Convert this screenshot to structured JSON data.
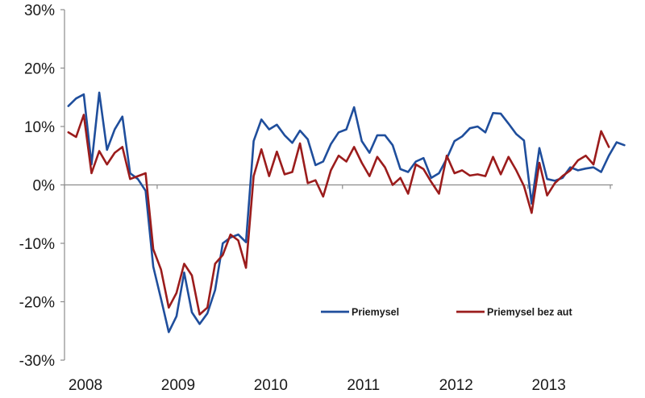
{
  "chart_data": {
    "type": "line",
    "title": "",
    "xlabel": "",
    "ylabel": "",
    "ylim": [
      -30,
      30
    ],
    "yticks": [
      30,
      20,
      10,
      0,
      -10,
      -20,
      -30
    ],
    "ytick_labels": [
      "30%",
      "20%",
      "10%",
      "0%",
      "-10%",
      "-20%",
      "-30%"
    ],
    "xlim": [
      2008.0,
      2013.9167
    ],
    "xticks": [
      2008,
      2009,
      2010,
      2011,
      2012,
      2013
    ],
    "xtick_labels": [
      "2008",
      "2009",
      "2010",
      "2011",
      "2012",
      "2013"
    ],
    "grid": false,
    "legend_position": "bottom-right",
    "frequency": "monthly",
    "start": "2008-01",
    "series": [
      {
        "name": "Priemysel",
        "color": "#1f4e9c",
        "values": [
          13.5,
          14.8,
          15.5,
          3.5,
          15.8,
          6.0,
          9.5,
          11.7,
          2.0,
          1.0,
          -1.0,
          -14.0,
          -19.5,
          -25.2,
          -22.5,
          -15.0,
          -21.8,
          -23.8,
          -22.0,
          -18.0,
          -10.0,
          -9.0,
          -8.5,
          -9.8,
          7.5,
          11.2,
          9.5,
          10.3,
          8.5,
          7.2,
          9.3,
          7.8,
          3.4,
          4.0,
          7.0,
          9.0,
          9.5,
          13.3,
          7.5,
          5.5,
          8.5,
          8.5,
          6.8,
          2.7,
          2.2,
          4.0,
          4.6,
          1.2,
          2.0,
          4.5,
          7.5,
          8.3,
          9.7,
          10.0,
          9.0,
          12.3,
          12.2,
          10.5,
          8.7,
          7.6,
          -3.2,
          6.3,
          1.0,
          0.7,
          1.2,
          3.0,
          2.5,
          2.8,
          3.0,
          2.2,
          5.0,
          7.3,
          6.8
        ]
      },
      {
        "name": "Priemysel bez aut",
        "color": "#9b1c1c",
        "values": [
          9.0,
          8.2,
          12.0,
          2.0,
          5.8,
          3.5,
          5.5,
          6.5,
          1.0,
          1.5,
          2.0,
          -11.0,
          -14.5,
          -21.0,
          -18.5,
          -13.5,
          -15.5,
          -22.2,
          -21.0,
          -13.5,
          -12.0,
          -8.5,
          -9.5,
          -14.2,
          1.5,
          6.1,
          1.5,
          5.7,
          1.8,
          2.2,
          7.1,
          0.3,
          0.8,
          -2.0,
          2.5,
          5.0,
          4.0,
          6.5,
          3.8,
          1.5,
          4.8,
          3.0,
          0.0,
          1.2,
          -1.5,
          3.5,
          2.7,
          0.5,
          -1.5,
          5.0,
          2.0,
          2.5,
          1.6,
          1.8,
          1.5,
          4.8,
          1.8,
          4.8,
          2.5,
          -0.2,
          -4.8,
          3.8,
          -1.8,
          0.3,
          1.5,
          2.5,
          4.2,
          5.0,
          3.5,
          9.2,
          6.5
        ]
      }
    ]
  }
}
